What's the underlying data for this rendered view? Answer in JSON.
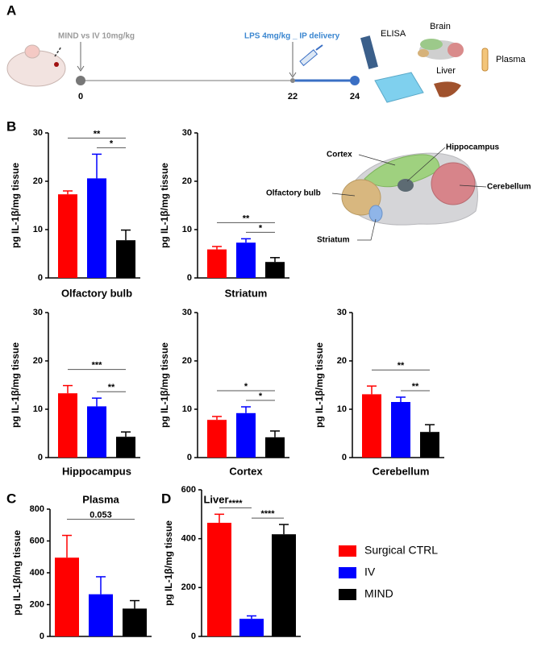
{
  "panel_a": {
    "label": "A",
    "dose": "MIND vs IV 10mg/kg",
    "challenge": "LPS 4mg/kg _ IP delivery",
    "timepoints": [
      0,
      22,
      24
    ],
    "assay": "ELISA",
    "tissues": [
      "Brain",
      "Liver",
      "Plasma"
    ]
  },
  "panel_b": {
    "label": "B",
    "regions": [
      "Cortex",
      "Hippocampus",
      "Olfactory bulb",
      "Cerebellum",
      "Striatum"
    ]
  },
  "panel_c": {
    "label": "C"
  },
  "panel_d": {
    "label": "D"
  },
  "legend": [
    {
      "name": "Surgical CTRL",
      "color": "#ff0000"
    },
    {
      "name": "IV",
      "color": "#0000ff"
    },
    {
      "name": "MIND",
      "color": "#000000"
    }
  ],
  "chart_data": [
    {
      "type": "bar",
      "title": "Olfactory bulb",
      "y_label": "pg IL-1β/mg tissue",
      "values": [
        17.3,
        20.6,
        7.8
      ],
      "errors": [
        0.7,
        5.0,
        2.1
      ],
      "ylim": [
        0,
        30
      ],
      "yticks": [
        0,
        10,
        20,
        30
      ],
      "annotations": [
        {
          "label": "**",
          "between": [
            0,
            2
          ]
        },
        {
          "label": "*",
          "between": [
            1,
            2
          ]
        }
      ]
    },
    {
      "type": "bar",
      "title": "Striatum",
      "y_label": "pg IL-1β/mg tissue",
      "values": [
        5.9,
        7.3,
        3.3
      ],
      "errors": [
        0.6,
        0.8,
        0.9
      ],
      "ylim": [
        0,
        30
      ],
      "yticks": [
        0,
        10,
        20,
        30
      ],
      "annotations": [
        {
          "label": "**",
          "between": [
            0,
            2
          ]
        },
        {
          "label": "*",
          "between": [
            1,
            2
          ]
        }
      ]
    },
    {
      "type": "bar",
      "title": "Hippocampus",
      "y_label": "pg IL-1β/mg tissue",
      "values": [
        13.3,
        10.6,
        4.3
      ],
      "errors": [
        1.6,
        1.7,
        1.0
      ],
      "ylim": [
        0,
        30
      ],
      "yticks": [
        0,
        10,
        20,
        30
      ],
      "annotations": [
        {
          "label": "***",
          "between": [
            0,
            2
          ]
        },
        {
          "label": "**",
          "between": [
            1,
            2
          ]
        }
      ]
    },
    {
      "type": "bar",
      "title": "Cortex",
      "y_label": "pg IL-1β/mg tissue",
      "values": [
        7.8,
        9.2,
        4.2
      ],
      "errors": [
        0.7,
        1.3,
        1.3
      ],
      "ylim": [
        0,
        30
      ],
      "yticks": [
        0,
        10,
        20,
        30
      ],
      "annotations": [
        {
          "label": "*",
          "between": [
            0,
            2
          ]
        },
        {
          "label": "*",
          "between": [
            1,
            2
          ]
        }
      ]
    },
    {
      "type": "bar",
      "title": "Cerebellum",
      "y_label": "pg IL-1β/mg tissue",
      "values": [
        13.1,
        11.5,
        5.3
      ],
      "errors": [
        1.7,
        1.0,
        1.5
      ],
      "ylim": [
        0,
        30
      ],
      "yticks": [
        0,
        10,
        20,
        30
      ],
      "annotations": [
        {
          "label": "**",
          "between": [
            0,
            2
          ]
        },
        {
          "label": "**",
          "between": [
            1,
            2
          ]
        }
      ]
    },
    {
      "type": "bar",
      "title": "Plasma",
      "y_label": "pg IL-1β/mg tissue",
      "values": [
        495,
        265,
        175
      ],
      "errors": [
        140,
        110,
        50
      ],
      "ylim": [
        0,
        800
      ],
      "yticks": [
        0,
        200,
        400,
        600,
        800
      ],
      "annotations": [
        {
          "label": "0.053",
          "between": [
            0,
            2
          ]
        }
      ]
    },
    {
      "type": "bar",
      "title": "Liver",
      "y_label": "pg IL-1β/mg tissue",
      "values": [
        465,
        72,
        418
      ],
      "errors": [
        35,
        12,
        40
      ],
      "ylim": [
        0,
        600
      ],
      "yticks": [
        0,
        200,
        400,
        600
      ],
      "annotations": [
        {
          "label": "****",
          "between": [
            0,
            1
          ]
        },
        {
          "label": "****",
          "between": [
            1,
            2
          ]
        }
      ]
    }
  ]
}
